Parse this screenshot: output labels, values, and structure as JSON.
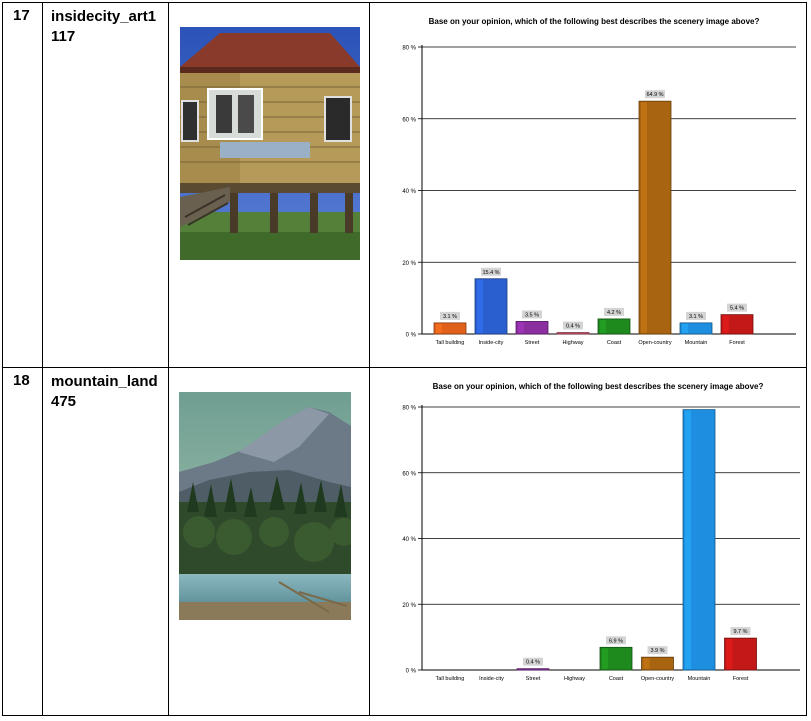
{
  "rows": [
    {
      "number": "17",
      "name": "insidecity_art1117"
    },
    {
      "number": "18",
      "name": "mountain_land475"
    }
  ],
  "colors": {
    "Tall building": "#e0601a",
    "Inside-city": "#2a5fd0",
    "Street": "#8a2ea0",
    "Highway": "#d04a6a",
    "Coast": "#1e8a1e",
    "Open-country": "#a86410",
    "Mountain": "#1e8fe0",
    "Forest": "#c21818"
  },
  "chart_data": [
    {
      "type": "bar",
      "title": "Base on your opinion, which of the following best describes the scenery image above?",
      "categories": [
        "Tall building",
        "Inside-city",
        "Street",
        "Highway",
        "Coast",
        "Open-country",
        "Mountain",
        "Forest"
      ],
      "values": [
        3.1,
        15.4,
        3.5,
        0.4,
        4.2,
        64.9,
        3.1,
        5.4
      ],
      "labels": [
        "3.1 %",
        "15.4 %",
        "3.5 %",
        "0.4 %",
        "4.2 %",
        "64.9 %",
        "3.1 %",
        "5.4 %"
      ],
      "yticks": [
        "0 %",
        "20 %",
        "40 %",
        "60 %",
        "80 %"
      ],
      "ylim": [
        0,
        80
      ],
      "grid": true
    },
    {
      "type": "bar",
      "title": "Base on your opinion, which of the following best describes the scenery image above?",
      "categories": [
        "Tall building",
        "Inside-city",
        "Street",
        "Highway",
        "Coast",
        "Open-country",
        "Mountain",
        "Forest"
      ],
      "values": [
        0,
        0,
        0.4,
        0,
        6.9,
        3.9,
        79.2,
        9.7
      ],
      "labels": [
        "",
        "",
        "0.4 %",
        "",
        "6.9 %",
        "3.9 %",
        "",
        "9.7 %"
      ],
      "yticks": [
        "0 %",
        "20 %",
        "40 %",
        "60 %",
        "80 %"
      ],
      "ylim": [
        0,
        80
      ],
      "grid": true
    }
  ]
}
